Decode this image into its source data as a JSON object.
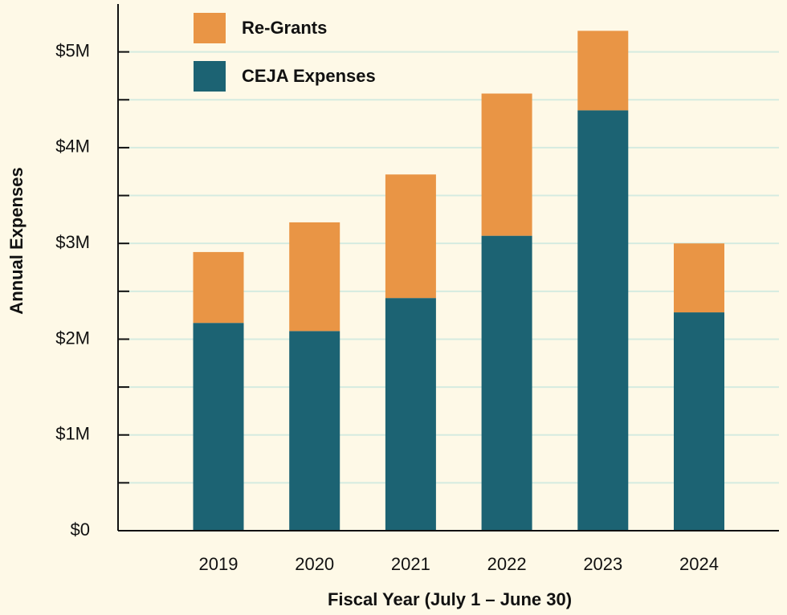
{
  "chart_data": {
    "type": "stacked_bar",
    "xlabel": "Fiscal Year (July 1 – June 30)",
    "ylabel": "Annual Expenses",
    "categories": [
      "2019",
      "2020",
      "2021",
      "2022",
      "2023",
      "2024"
    ],
    "series": [
      {
        "name": "CEJA Expenses",
        "color": "#1c6373",
        "values": [
          2170000,
          2085000,
          2430000,
          3080000,
          4390000,
          2280000
        ]
      },
      {
        "name": "Re-Grants",
        "color": "#e99545",
        "values": [
          740000,
          1135000,
          1290000,
          1485000,
          830000,
          720000
        ]
      }
    ],
    "ylim": [
      0,
      5500000
    ],
    "yticks": [
      {
        "value": 0,
        "label": "$0"
      },
      {
        "value": 1000000,
        "label": "$1M"
      },
      {
        "value": 2000000,
        "label": "$2M"
      },
      {
        "value": 3000000,
        "label": "$3M"
      },
      {
        "value": 4000000,
        "label": "$4M"
      },
      {
        "value": 5000000,
        "label": "$5M"
      }
    ],
    "yminorticks": [
      500000,
      1500000,
      2500000,
      3500000,
      4500000
    ],
    "grid": true,
    "legend": "top-left"
  }
}
